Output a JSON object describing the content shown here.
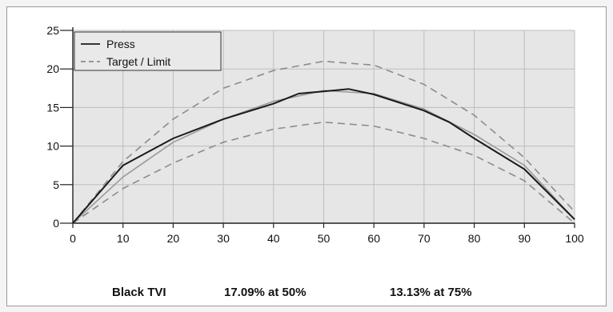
{
  "chart_data": {
    "type": "line",
    "title": "",
    "xlabel": "",
    "ylabel": "",
    "xlim": [
      0,
      100
    ],
    "ylim": [
      0,
      25
    ],
    "xticks": [
      0,
      10,
      20,
      30,
      40,
      50,
      60,
      70,
      80,
      90,
      100
    ],
    "yticks": [
      0,
      5,
      10,
      15,
      20,
      25
    ],
    "grid": true,
    "legend_position": "top-left",
    "legend": [
      {
        "label": "Press",
        "style": "solid",
        "color": "#1a1a1a"
      },
      {
        "label": "Target / Limit",
        "style": "dashed",
        "color": "#8c8c8c"
      }
    ],
    "series": [
      {
        "name": "Press",
        "style": "solid",
        "color": "#1a1a1a",
        "x": [
          0,
          10,
          20,
          30,
          40,
          45,
          50,
          55,
          60,
          70,
          75,
          80,
          90,
          100
        ],
        "y": [
          0,
          7.5,
          11,
          13.5,
          15.5,
          16.8,
          17.1,
          17.4,
          16.7,
          14.6,
          13.1,
          11,
          7,
          0.5
        ]
      },
      {
        "name": "Target / Limit",
        "style": "solid",
        "color": "#9a9a9a",
        "x": [
          0,
          10,
          20,
          30,
          40,
          50,
          60,
          70,
          80,
          90,
          100
        ],
        "y": [
          0,
          6,
          10.5,
          13.5,
          15.8,
          17.2,
          16.8,
          14.8,
          11.5,
          7.5,
          0.5
        ]
      },
      {
        "name": "Target / Limit",
        "style": "dashed",
        "color": "#8c8c8c",
        "x": [
          0,
          10,
          20,
          30,
          40,
          50,
          60,
          70,
          80,
          90,
          100
        ],
        "y": [
          0,
          8,
          13.5,
          17.5,
          19.8,
          21,
          20.5,
          18,
          14,
          8.5,
          1.5
        ]
      },
      {
        "name": "Target / Limit",
        "style": "dashed",
        "color": "#8c8c8c",
        "x": [
          0,
          10,
          20,
          30,
          40,
          50,
          60,
          70,
          80,
          90,
          100
        ],
        "y": [
          0,
          4.5,
          7.8,
          10.5,
          12.2,
          13.1,
          12.6,
          11,
          8.8,
          5.5,
          0
        ]
      }
    ],
    "colors": {
      "plot_background": "#e6e6e6",
      "grid": "#bdbdbd"
    }
  },
  "footer": {
    "label": "Black TVI",
    "value_50": "17.09%  at 50%",
    "value_75": "13.13%  at 75%"
  }
}
